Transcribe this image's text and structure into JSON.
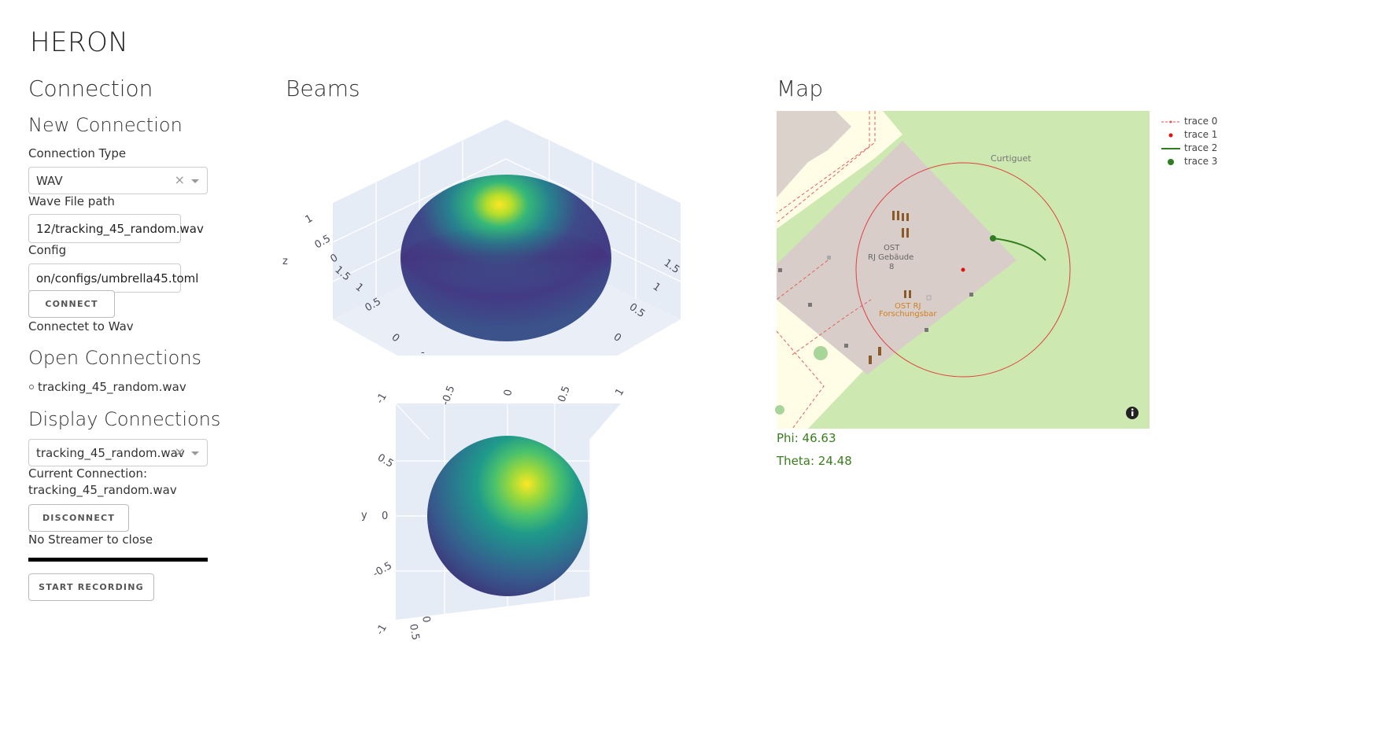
{
  "app": {
    "title": "HERON"
  },
  "connection": {
    "heading": "Connection",
    "new_heading": "New Connection",
    "type_label": "Connection Type",
    "type_value": "WAV",
    "wave_label": "Wave File path",
    "wave_value": "12/tracking_45_random.wav",
    "config_label": "Config",
    "config_value": "on/configs/umbrella45.toml",
    "connect_label": "CONNECT",
    "connect_status": "Connectet to Wav",
    "open_heading": "Open Connections",
    "open_items": [
      "tracking_45_random.wav"
    ],
    "display_heading": "Display Connections",
    "display_value": "tracking_45_random.wav",
    "current_label": "Current Connection:",
    "current_value": "tracking_45_random.wav",
    "disconnect_label": "DISCONNECT",
    "streamer_status": "No Streamer to close",
    "record_label": "START RECORDING",
    "clear_glyph": "×"
  },
  "beams": {
    "heading": "Beams",
    "top_plot": {
      "z_axis_label": "z",
      "z_ticks": [
        "1",
        "0.5",
        "0"
      ],
      "left_ticks": [
        "1.5",
        "1",
        "0.5",
        "0",
        "-"
      ],
      "right_ticks": [
        "1.5",
        "1",
        "0.5",
        "0"
      ]
    },
    "bottom_plot": {
      "y_axis_label": "y",
      "top_ticks": [
        "-1",
        "-0.5",
        "0",
        "0.5",
        "1"
      ],
      "y_ticks": [
        "0.5",
        "0",
        "-0.5",
        "-1"
      ],
      "bottom_ticks": [
        "0",
        "0.5"
      ]
    },
    "colorscale": [
      "#440154",
      "#3b528b",
      "#21918c",
      "#5ec962",
      "#fde725"
    ]
  },
  "map": {
    "heading": "Map",
    "place_labels": {
      "curtiguet": "Curtiguet",
      "building_line1": "OST",
      "building_line2": "RJ Gebäude",
      "building_line3": "8",
      "bar_line1": "OST RJ",
      "bar_line2": "Forschungsbar"
    },
    "legend": [
      {
        "name": "trace 0",
        "symbol": "dash-line",
        "color": "#e05050"
      },
      {
        "name": "trace 1",
        "symbol": "dot",
        "color": "#e01010"
      },
      {
        "name": "trace 2",
        "symbol": "line",
        "color": "#2e7d1e"
      },
      {
        "name": "trace 3",
        "symbol": "dot",
        "color": "#2e7d1e"
      }
    ],
    "info_icon": "info-icon",
    "phi_label": "Phi: 46.63",
    "theta_label": "Theta: 24.48"
  }
}
